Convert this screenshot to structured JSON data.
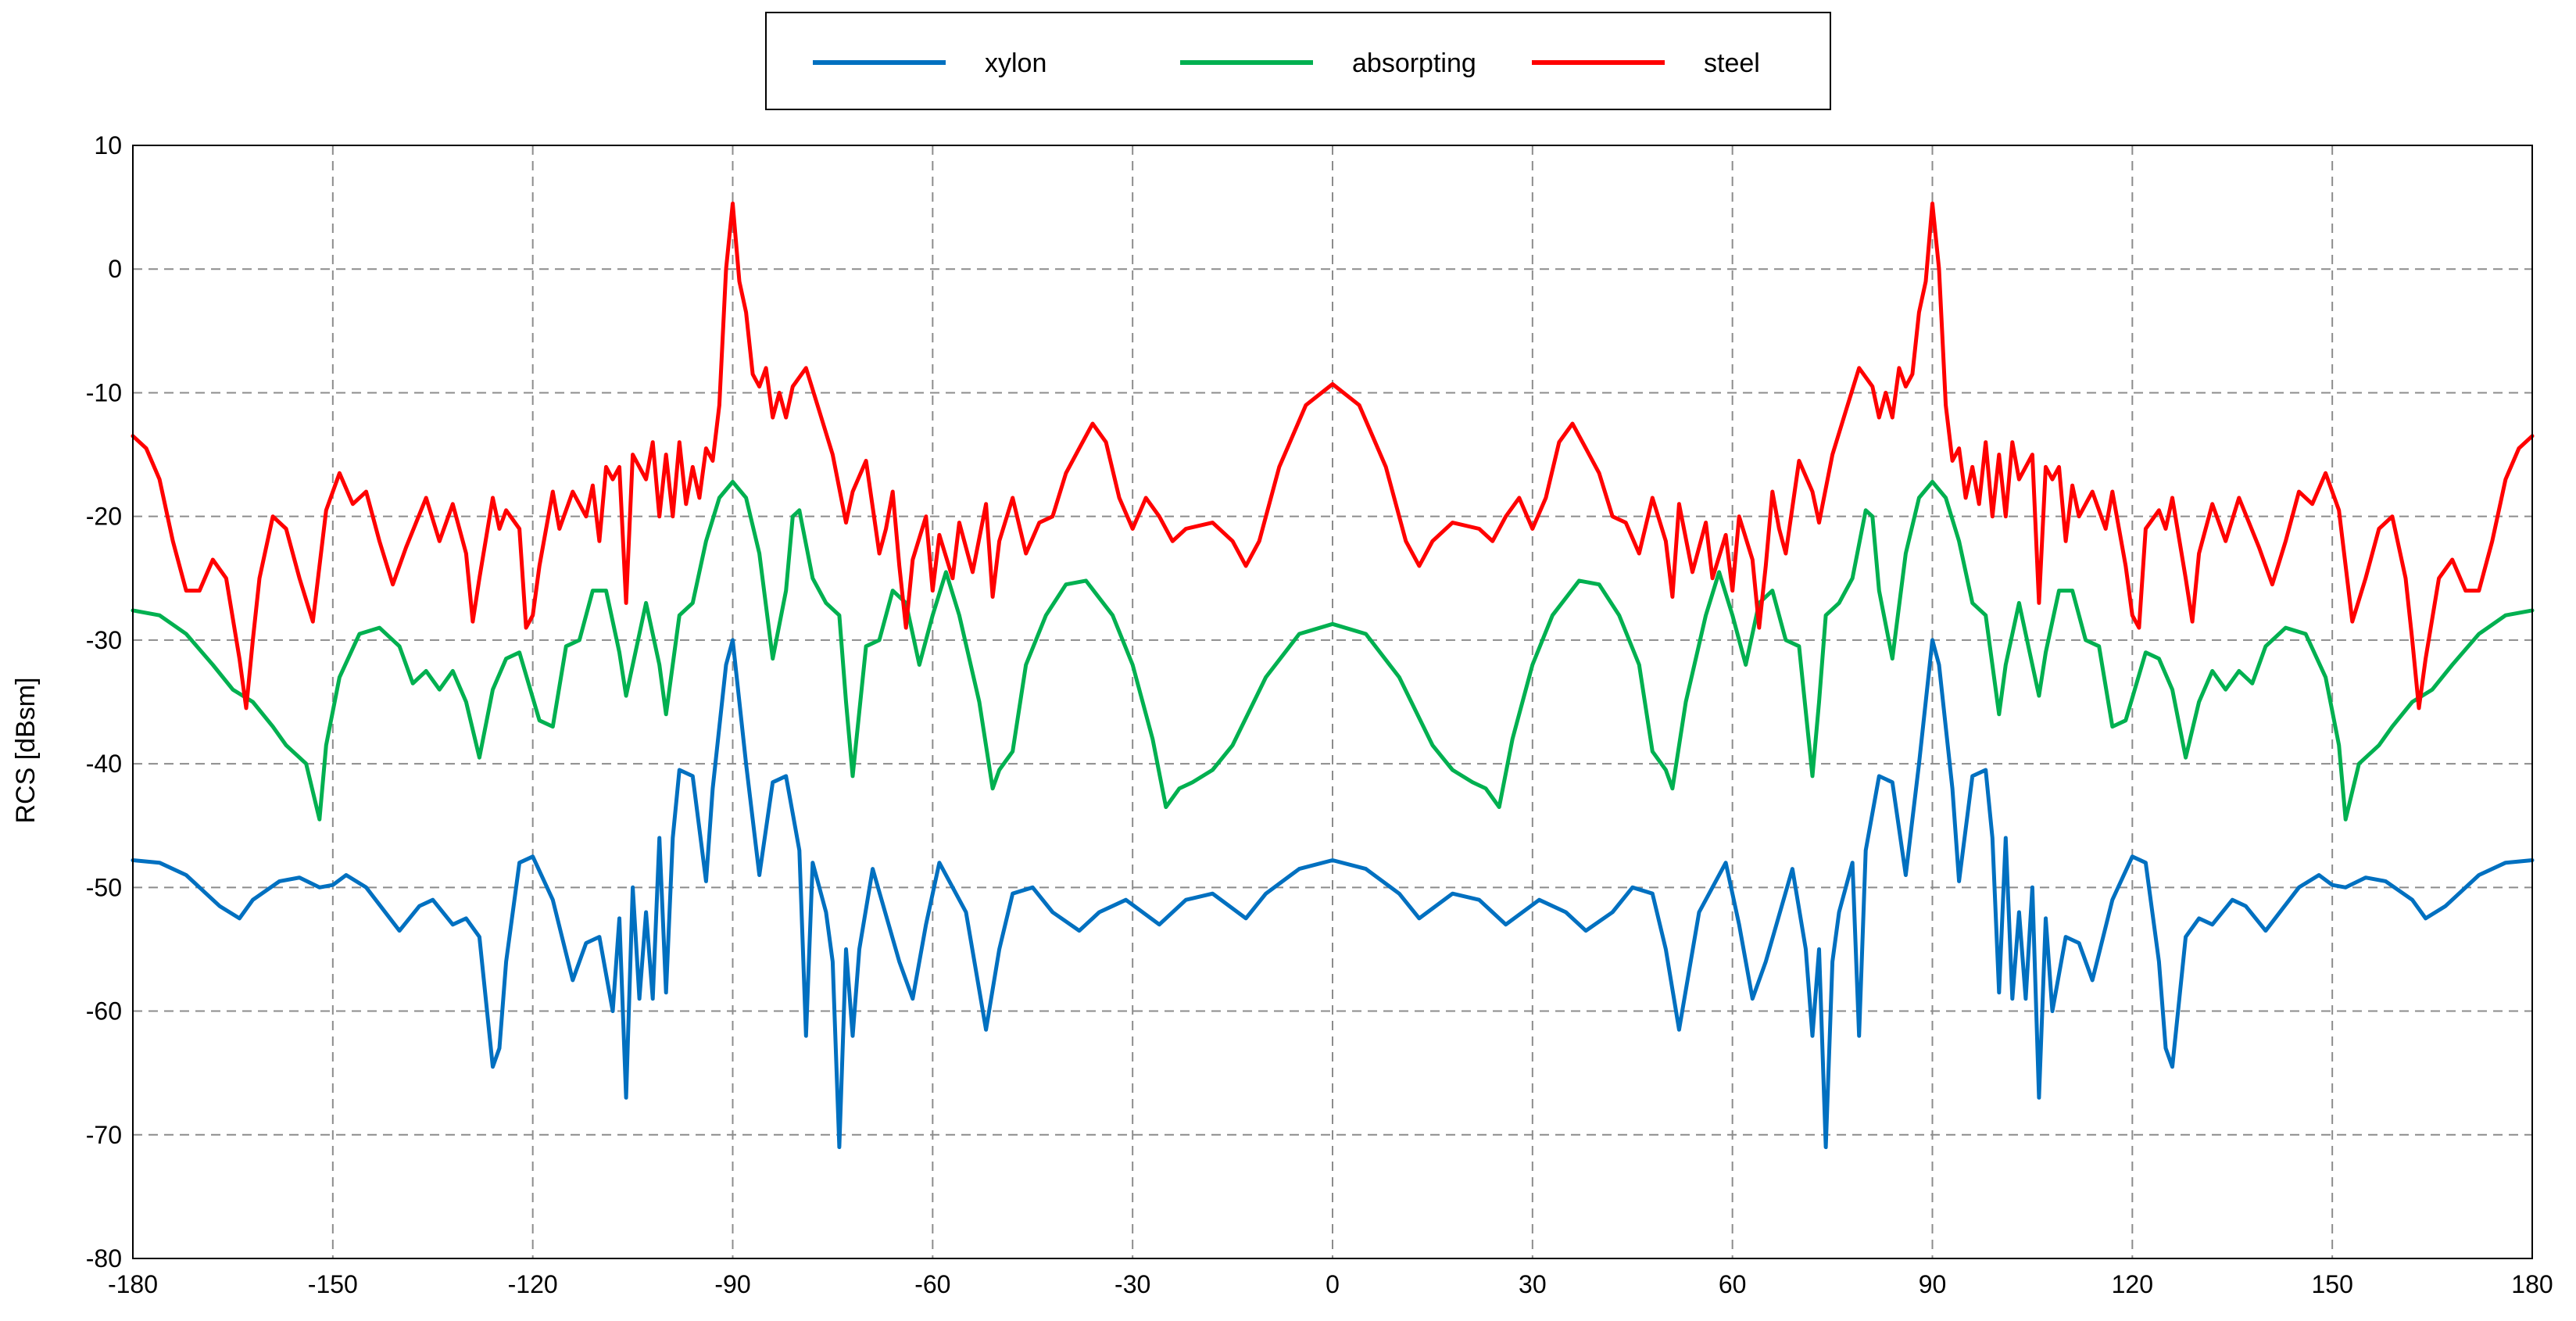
{
  "chart_data": {
    "type": "line",
    "title": "",
    "xlabel": "",
    "ylabel": "RCS [dBsm]",
    "xlim": [
      -180,
      180
    ],
    "ylim": [
      -80,
      10
    ],
    "xticks": [
      -180,
      -150,
      -120,
      -90,
      -60,
      -30,
      0,
      30,
      60,
      90,
      120,
      150,
      180
    ],
    "yticks": [
      10,
      0,
      -10,
      -20,
      -30,
      -40,
      -50,
      -60,
      -70,
      -80
    ],
    "grid": true,
    "legend_position": "top-center",
    "symmetric_about_zero": true,
    "series": [
      {
        "name": "xylon",
        "color": "#0070C0",
        "points": [
          [
            0,
            -47.8
          ],
          [
            5,
            -48.5
          ],
          [
            10,
            -50.5
          ],
          [
            13,
            -52.5
          ],
          [
            18,
            -50.5
          ],
          [
            22,
            -51
          ],
          [
            26,
            -53
          ],
          [
            31,
            -51
          ],
          [
            35,
            -52
          ],
          [
            38,
            -53.5
          ],
          [
            42,
            -52
          ],
          [
            45,
            -50
          ],
          [
            48,
            -50.5
          ],
          [
            50,
            -55
          ],
          [
            52,
            -61.5
          ],
          [
            55,
            -52
          ],
          [
            59,
            -48
          ],
          [
            61,
            -53
          ],
          [
            63,
            -59
          ],
          [
            65,
            -56
          ],
          [
            69,
            -48.5
          ],
          [
            71,
            -55
          ],
          [
            72,
            -62
          ],
          [
            73,
            -55
          ],
          [
            74,
            -71
          ],
          [
            75,
            -56
          ],
          [
            76,
            -52
          ],
          [
            78,
            -48
          ],
          [
            79,
            -62
          ],
          [
            80,
            -47
          ],
          [
            82,
            -41
          ],
          [
            84,
            -41.5
          ],
          [
            86,
            -49
          ],
          [
            88,
            -40
          ],
          [
            90,
            -30
          ],
          [
            91,
            -32
          ],
          [
            93,
            -42
          ],
          [
            94,
            -49.5
          ],
          [
            96,
            -41
          ],
          [
            98,
            -40.5
          ],
          [
            99,
            -46
          ],
          [
            100,
            -58.5
          ],
          [
            101,
            -46
          ],
          [
            102,
            -59
          ],
          [
            103,
            -52
          ],
          [
            104,
            -59
          ],
          [
            105,
            -50
          ],
          [
            106,
            -67
          ],
          [
            107,
            -52.5
          ],
          [
            108,
            -60
          ],
          [
            110,
            -54
          ],
          [
            112,
            -54.5
          ],
          [
            114,
            -57.5
          ],
          [
            117,
            -51
          ],
          [
            120,
            -47.5
          ],
          [
            122,
            -48
          ],
          [
            124,
            -56
          ],
          [
            125,
            -63
          ],
          [
            126,
            -64.5
          ],
          [
            128,
            -54
          ],
          [
            130,
            -52.5
          ],
          [
            132,
            -53
          ],
          [
            135,
            -51
          ],
          [
            137,
            -51.5
          ],
          [
            140,
            -53.5
          ],
          [
            145,
            -50
          ],
          [
            148,
            -49
          ],
          [
            150,
            -49.8
          ],
          [
            152,
            -50
          ],
          [
            155,
            -49.2
          ],
          [
            158,
            -49.5
          ],
          [
            162,
            -51
          ],
          [
            164,
            -52.5
          ],
          [
            167,
            -51.5
          ],
          [
            172,
            -49
          ],
          [
            176,
            -48
          ],
          [
            180,
            -47.8
          ]
        ]
      },
      {
        "name": "absorpting",
        "color": "#00B050",
        "points": [
          [
            0,
            -28.7
          ],
          [
            5,
            -29.5
          ],
          [
            10,
            -33
          ],
          [
            15,
            -38.5
          ],
          [
            18,
            -40.5
          ],
          [
            21,
            -41.5
          ],
          [
            23,
            -42
          ],
          [
            25,
            -43.5
          ],
          [
            27,
            -38
          ],
          [
            30,
            -32
          ],
          [
            33,
            -28
          ],
          [
            37,
            -25.2
          ],
          [
            40,
            -25.5
          ],
          [
            43,
            -28
          ],
          [
            46,
            -32
          ],
          [
            48,
            -39
          ],
          [
            50,
            -40.5
          ],
          [
            51,
            -42
          ],
          [
            53,
            -35
          ],
          [
            56,
            -28
          ],
          [
            58,
            -24.5
          ],
          [
            60,
            -28
          ],
          [
            62,
            -32
          ],
          [
            64,
            -27
          ],
          [
            66,
            -26
          ],
          [
            68,
            -30
          ],
          [
            70,
            -30.5
          ],
          [
            72,
            -41
          ],
          [
            73,
            -35
          ],
          [
            74,
            -28
          ],
          [
            76,
            -27
          ],
          [
            78,
            -25
          ],
          [
            80,
            -19.5
          ],
          [
            81,
            -20
          ],
          [
            82,
            -26
          ],
          [
            84,
            -31.5
          ],
          [
            86,
            -23
          ],
          [
            88,
            -18.5
          ],
          [
            90,
            -17.2
          ],
          [
            92,
            -18.5
          ],
          [
            94,
            -22
          ],
          [
            96,
            -27
          ],
          [
            98,
            -28
          ],
          [
            100,
            -36
          ],
          [
            101,
            -32
          ],
          [
            103,
            -27
          ],
          [
            104,
            -29.5
          ],
          [
            106,
            -34.5
          ],
          [
            107,
            -31
          ],
          [
            109,
            -26
          ],
          [
            111,
            -26
          ],
          [
            113,
            -30
          ],
          [
            115,
            -30.5
          ],
          [
            117,
            -37
          ],
          [
            119,
            -36.5
          ],
          [
            122,
            -31
          ],
          [
            124,
            -31.5
          ],
          [
            126,
            -34
          ],
          [
            128,
            -39.5
          ],
          [
            130,
            -35
          ],
          [
            132,
            -32.5
          ],
          [
            134,
            -34
          ],
          [
            136,
            -32.5
          ],
          [
            138,
            -33.5
          ],
          [
            140,
            -30.5
          ],
          [
            143,
            -29
          ],
          [
            146,
            -29.5
          ],
          [
            149,
            -33
          ],
          [
            151,
            -38.5
          ],
          [
            152,
            -44.5
          ],
          [
            154,
            -40
          ],
          [
            157,
            -38.5
          ],
          [
            159,
            -37
          ],
          [
            162,
            -35
          ],
          [
            165,
            -34
          ],
          [
            168,
            -32
          ],
          [
            172,
            -29.5
          ],
          [
            176,
            -28
          ],
          [
            180,
            -27.6
          ]
        ]
      },
      {
        "name": "steel",
        "color": "#FF0000",
        "points": [
          [
            0,
            -9.3
          ],
          [
            4,
            -11
          ],
          [
            8,
            -16
          ],
          [
            11,
            -22
          ],
          [
            13,
            -24
          ],
          [
            15,
            -22
          ],
          [
            18,
            -20.5
          ],
          [
            22,
            -21
          ],
          [
            24,
            -22
          ],
          [
            26,
            -20
          ],
          [
            28,
            -18.5
          ],
          [
            30,
            -21
          ],
          [
            32,
            -18.5
          ],
          [
            34,
            -14
          ],
          [
            36,
            -12.5
          ],
          [
            38,
            -14.5
          ],
          [
            40,
            -16.5
          ],
          [
            42,
            -20
          ],
          [
            44,
            -20.5
          ],
          [
            46,
            -23
          ],
          [
            48,
            -18.5
          ],
          [
            50,
            -22
          ],
          [
            51,
            -26.5
          ],
          [
            52,
            -19
          ],
          [
            54,
            -24.5
          ],
          [
            56,
            -20.5
          ],
          [
            57,
            -25
          ],
          [
            59,
            -21.5
          ],
          [
            60,
            -26
          ],
          [
            61,
            -20
          ],
          [
            63,
            -23.5
          ],
          [
            64,
            -29
          ],
          [
            65,
            -24
          ],
          [
            66,
            -18
          ],
          [
            67,
            -21
          ],
          [
            68,
            -23
          ],
          [
            70,
            -15.5
          ],
          [
            72,
            -18
          ],
          [
            73,
            -20.5
          ],
          [
            75,
            -15
          ],
          [
            77,
            -11.5
          ],
          [
            79,
            -8
          ],
          [
            81,
            -9.5
          ],
          [
            82,
            -12
          ],
          [
            83,
            -10
          ],
          [
            84,
            -12
          ],
          [
            85,
            -8
          ],
          [
            86,
            -9.5
          ],
          [
            87,
            -8.5
          ],
          [
            88,
            -3.5
          ],
          [
            89,
            -1
          ],
          [
            90,
            5.3
          ],
          [
            91,
            0
          ],
          [
            92,
            -11
          ],
          [
            93,
            -15.5
          ],
          [
            94,
            -14.5
          ],
          [
            95,
            -18.5
          ],
          [
            96,
            -16
          ],
          [
            97,
            -19
          ],
          [
            98,
            -14
          ],
          [
            99,
            -20
          ],
          [
            100,
            -15
          ],
          [
            101,
            -20
          ],
          [
            102,
            -14
          ],
          [
            103,
            -17
          ],
          [
            105,
            -15
          ],
          [
            106,
            -27
          ],
          [
            107,
            -16
          ],
          [
            108,
            -17
          ],
          [
            109,
            -16
          ],
          [
            110,
            -22
          ],
          [
            111,
            -17.5
          ],
          [
            112,
            -20
          ],
          [
            114,
            -18
          ],
          [
            116,
            -21
          ],
          [
            117,
            -18
          ],
          [
            119,
            -24
          ],
          [
            120,
            -28
          ],
          [
            121,
            -29
          ],
          [
            122,
            -21
          ],
          [
            124,
            -19.5
          ],
          [
            125,
            -21
          ],
          [
            126,
            -18.5
          ],
          [
            128,
            -25
          ],
          [
            129,
            -28.5
          ],
          [
            130,
            -23
          ],
          [
            132,
            -19
          ],
          [
            133,
            -20.5
          ],
          [
            134,
            -22
          ],
          [
            136,
            -18.5
          ],
          [
            139,
            -22.5
          ],
          [
            141,
            -25.5
          ],
          [
            143,
            -22
          ],
          [
            145,
            -18
          ],
          [
            147,
            -19
          ],
          [
            149,
            -16.5
          ],
          [
            151,
            -19.5
          ],
          [
            153,
            -28.5
          ],
          [
            155,
            -25
          ],
          [
            157,
            -21
          ],
          [
            159,
            -20
          ],
          [
            161,
            -25
          ],
          [
            162,
            -30
          ],
          [
            163,
            -35.5
          ],
          [
            164,
            -31.5
          ],
          [
            166,
            -25
          ],
          [
            168,
            -23.5
          ],
          [
            170,
            -26
          ],
          [
            172,
            -26
          ],
          [
            174,
            -22
          ],
          [
            176,
            -17
          ],
          [
            178,
            -14.5
          ],
          [
            180,
            -13.5
          ]
        ]
      }
    ]
  }
}
